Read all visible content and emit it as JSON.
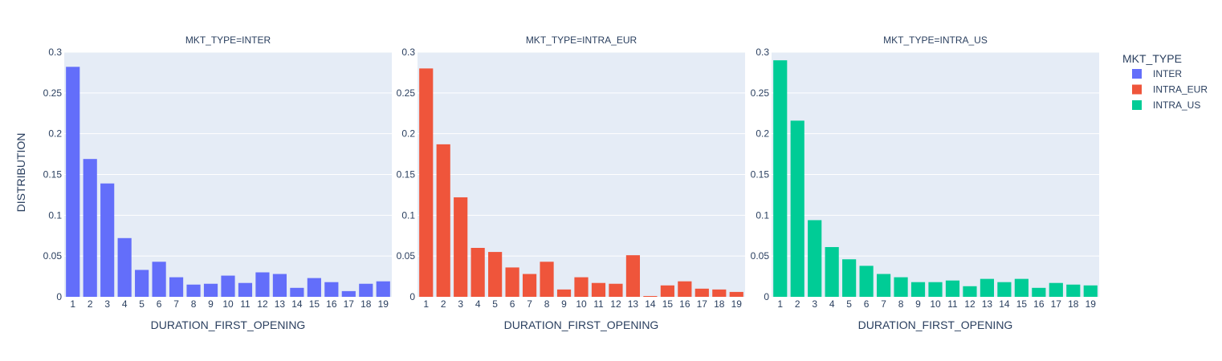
{
  "colors": {
    "plot_bg": "#E5ECF6",
    "grid": "#ffffff",
    "text": "#2a3f5f"
  },
  "chart_data": {
    "type": "bar",
    "facet_by": "MKT_TYPE",
    "xlabel": "DURATION_FIRST_OPENING",
    "ylabel": "DISTRIBUTION",
    "ylim": [
      0,
      0.3
    ],
    "y_ticks": [
      0,
      0.05,
      0.1,
      0.15,
      0.2,
      0.25,
      0.3
    ],
    "y_tick_labels": [
      "0",
      "0.05",
      "0.1",
      "0.15",
      "0.2",
      "0.25",
      "0.3"
    ],
    "categories": [
      "1",
      "2",
      "3",
      "4",
      "5",
      "6",
      "7",
      "8",
      "9",
      "10",
      "11",
      "12",
      "13",
      "14",
      "15",
      "16",
      "17",
      "18",
      "19"
    ],
    "grid": true,
    "legend": {
      "title": "MKT_TYPE",
      "placement": "right",
      "entries": [
        "INTER",
        "INTRA_EUR",
        "INTRA_US"
      ]
    },
    "panels": [
      {
        "title": "MKT_TYPE=INTER",
        "series_name": "INTER",
        "color": "#636EFA",
        "values": [
          0.282,
          0.169,
          0.139,
          0.072,
          0.033,
          0.043,
          0.024,
          0.015,
          0.016,
          0.026,
          0.017,
          0.03,
          0.028,
          0.011,
          0.023,
          0.018,
          0.007,
          0.016,
          0.019
        ]
      },
      {
        "title": "MKT_TYPE=INTRA_EUR",
        "series_name": "INTRA_EUR",
        "color": "#EF553B",
        "values": [
          0.28,
          0.187,
          0.122,
          0.06,
          0.055,
          0.036,
          0.028,
          0.043,
          0.009,
          0.024,
          0.017,
          0.016,
          0.051,
          0.001,
          0.014,
          0.019,
          0.01,
          0.009,
          0.006
        ]
      },
      {
        "title": "MKT_TYPE=INTRA_US",
        "series_name": "INTRA_US",
        "color": "#00CC96",
        "values": [
          0.29,
          0.216,
          0.094,
          0.061,
          0.046,
          0.038,
          0.028,
          0.024,
          0.018,
          0.018,
          0.02,
          0.013,
          0.022,
          0.018,
          0.022,
          0.011,
          0.017,
          0.015,
          0.014
        ]
      }
    ]
  }
}
